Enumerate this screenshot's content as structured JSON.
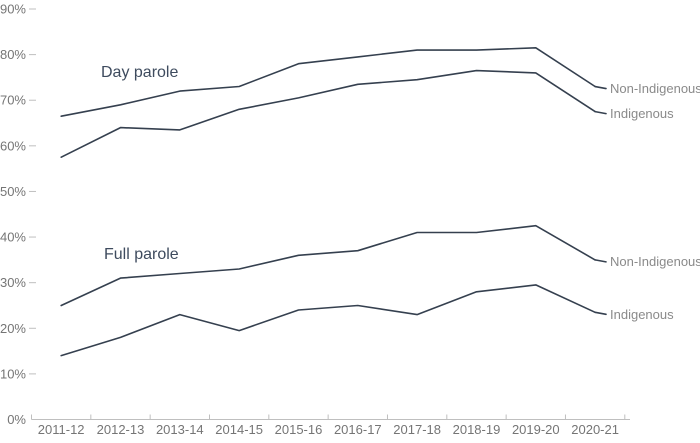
{
  "chart_data": {
    "type": "line",
    "title": "",
    "xlabel": "",
    "ylabel": "",
    "x": [
      "2011-12",
      "2012-13",
      "2013-14",
      "2014-15",
      "2015-16",
      "2016-17",
      "2017-18",
      "2018-19",
      "2019-20",
      "2020-21"
    ],
    "y_ticks": [
      "0%",
      "10%",
      "20%",
      "30%",
      "40%",
      "50%",
      "60%",
      "70%",
      "80%",
      "90%"
    ],
    "ylim": [
      0,
      90
    ],
    "unit": "percent",
    "grid": "off",
    "legend_position": "line-end-labels",
    "groups": [
      {
        "label": "Day parole",
        "series": [
          {
            "name": "Non-Indigenous",
            "values": [
              66.5,
              69,
              72,
              73,
              78,
              79.5,
              81,
              81,
              81.5,
              73
            ]
          },
          {
            "name": "Indigenous",
            "values": [
              57.5,
              64,
              63.5,
              68,
              70.5,
              73.5,
              74.5,
              76.5,
              76,
              67.5
            ]
          }
        ]
      },
      {
        "label": "Full parole",
        "series": [
          {
            "name": "Non-Indigenous",
            "values": [
              25,
              31,
              32,
              33,
              36,
              37,
              41,
              41,
              42.5,
              35
            ]
          },
          {
            "name": "Indigenous",
            "values": [
              14,
              18,
              23,
              19.5,
              24,
              25,
              23,
              28,
              29.5,
              23.5
            ]
          }
        ]
      }
    ],
    "colors": {
      "line": "#35404f",
      "axis": "#bfbfbf",
      "tick_label": "#757575",
      "series_label": "#8a8a8a",
      "group_label": "#3e4b5e"
    }
  }
}
